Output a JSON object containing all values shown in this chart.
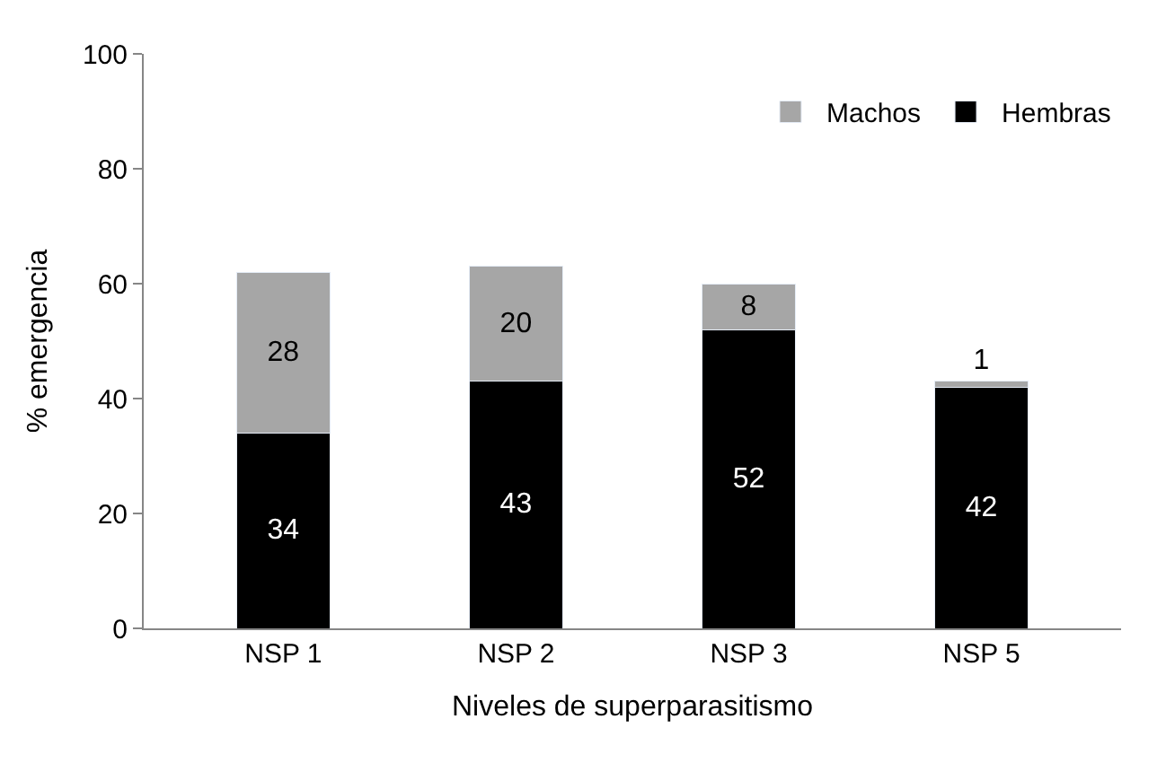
{
  "chart_data": {
    "type": "bar",
    "stacked": true,
    "xlabel": "Niveles de superparasitismo",
    "ylabel": "% emergencia",
    "categories": [
      "NSP 1",
      "NSP 2",
      "NSP 3",
      "NSP 5"
    ],
    "series": [
      {
        "name": "Hembras",
        "color": "#000000",
        "values": [
          34,
          43,
          52,
          42
        ]
      },
      {
        "name": "Machos",
        "color": "#a6a6a6",
        "values": [
          28,
          20,
          8,
          1
        ]
      }
    ],
    "ylim": [
      0,
      100
    ],
    "yticks": [
      0,
      20,
      40,
      60,
      80,
      100
    ],
    "legend": "top right",
    "data_labels": true
  }
}
